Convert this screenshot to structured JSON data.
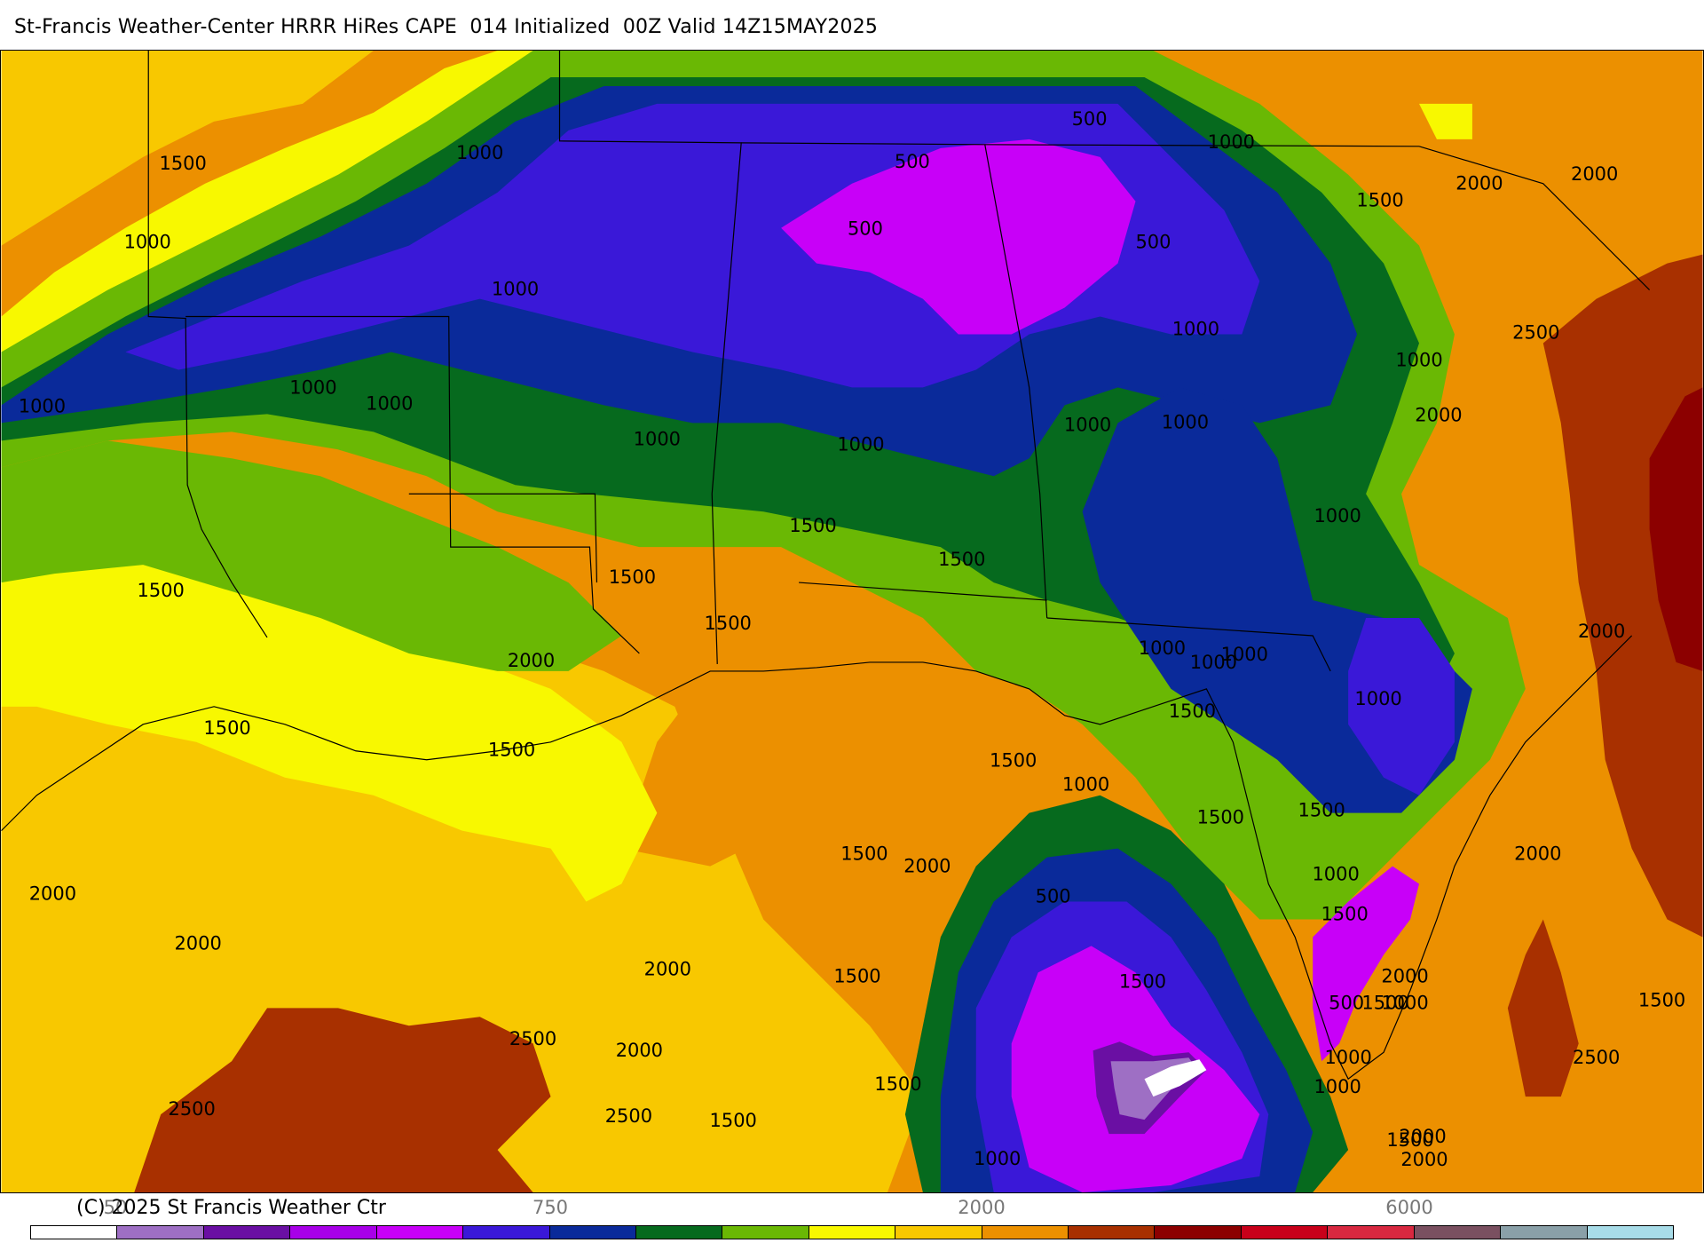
{
  "header": {
    "title": "St-Francis Weather-Center HRRR HiRes CAPE  014 Initialized  00Z Valid 14Z15MAY2025"
  },
  "footer": {
    "copyright": "(C) 2025 St Francis Weather Ctr"
  },
  "colorbar": {
    "tick_labels": [
      "50",
      "750",
      "2000",
      "6000"
    ],
    "colors": [
      "#ffffff",
      "#9e6fc4",
      "#6a0fa3",
      "#a800e8",
      "#c800f8",
      "#3a18d8",
      "#0a2a9a",
      "#066a1e",
      "#6ab804",
      "#f8f800",
      "#f8c800",
      "#ec9000",
      "#a83000",
      "#8c0000",
      "#c8001a",
      "#d82840",
      "#7a5060",
      "#8aa0a8",
      "#a8dce8"
    ]
  },
  "map": {
    "palette": {
      "orange": "#ec9000",
      "gold": "#f8c800",
      "yellow": "#f8f800",
      "lightgreen": "#6ab804",
      "darkgreen": "#066a1e",
      "navy": "#0a2a9a",
      "blue": "#3a18d8",
      "violet": "#c800f8",
      "purple": "#a800e8",
      "brown": "#a83000",
      "maroon": "#8c0000",
      "lavender": "#9e6fc4",
      "deeppurple": "#6a0fa3"
    },
    "contour_labels": [
      "1500",
      "1000",
      "1000",
      "1000",
      "1000",
      "1000",
      "1000",
      "1000",
      "1000",
      "500",
      "500",
      "500",
      "500",
      "1000",
      "1500",
      "2000",
      "2000",
      "1000",
      "2500",
      "2000",
      "1000",
      "1000",
      "1000",
      "1000",
      "1500",
      "1500",
      "1500",
      "1500",
      "1500",
      "2000",
      "1500",
      "1500",
      "1500",
      "1000",
      "1000",
      "1000",
      "1000",
      "1500",
      "1500",
      "1000",
      "1500",
      "2000",
      "2000",
      "1500",
      "2000",
      "2000",
      "2000",
      "1500",
      "500",
      "1000",
      "2500",
      "2000",
      "2000",
      "2500",
      "2500",
      "1500",
      "1500",
      "1000",
      "1500",
      "1500",
      "1000",
      "2000",
      "1500",
      "500",
      "1000",
      "1000",
      "1500",
      "2000",
      "2500",
      "2000",
      "1500"
    ]
  }
}
